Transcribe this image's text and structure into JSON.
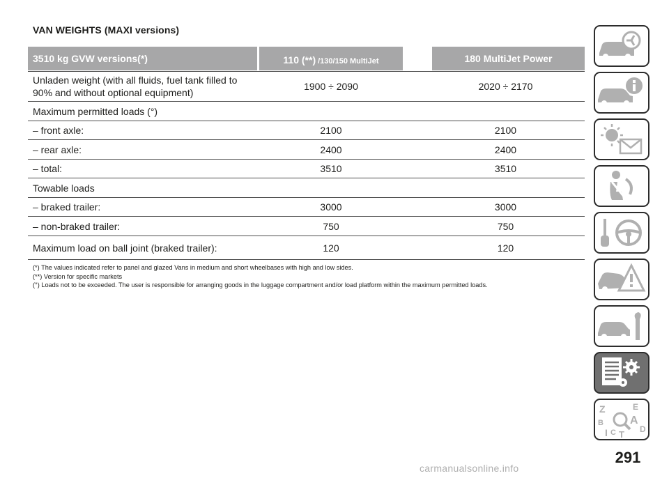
{
  "section_title": "VAN WEIGHTS (MAXI versions)",
  "table": {
    "header": {
      "col1": "3510 kg GVW versions(*)",
      "col2_main": "110 (**)",
      "col2_small": "/130/150 MultiJet",
      "col3": "180 MultiJet Power"
    },
    "rows": [
      {
        "label_line1": "Unladen weight (with all fluids, fuel tank filled to",
        "label_line2": "90% and without optional equipment)",
        "v1": "1900 ÷ 2090",
        "v2": "2020 ÷ 2170"
      },
      {
        "label": "Maximum permitted loads (°)",
        "v1": "",
        "v2": ""
      },
      {
        "label": "– front axle:",
        "v1": "2100",
        "v2": "2100"
      },
      {
        "label": "– rear axle:",
        "v1": "2400",
        "v2": "2400"
      },
      {
        "label": "– total:",
        "v1": "3510",
        "v2": "3510"
      },
      {
        "label": "Towable loads",
        "v1": "",
        "v2": ""
      },
      {
        "label": "– braked trailer:",
        "v1": "3000",
        "v2": "3000"
      },
      {
        "label": "– non-braked trailer:",
        "v1": "750",
        "v2": "750"
      },
      {
        "label": "Maximum load on ball joint (braked trailer):",
        "v1": "120",
        "v2": "120"
      }
    ]
  },
  "notes": [
    "(*) The values indicated refer to panel and glazed Vans in medium and short wheelbases with high and low sides.",
    "(**) Version for specific markets",
    "(°) Loads not to be exceeded. The user is responsible for arranging goods in the luggage compartment and/or load platform within the maximum permitted loads."
  ],
  "sidebar": {
    "tabs": [
      {
        "icon": "car-dashboard-icon"
      },
      {
        "icon": "car-info-icon"
      },
      {
        "icon": "warning-light-message-icon"
      },
      {
        "icon": "seatbelt-airbag-icon"
      },
      {
        "icon": "key-steering-wheel-icon"
      },
      {
        "icon": "car-emergency-icon"
      },
      {
        "icon": "car-maintenance-icon"
      },
      {
        "icon": "technical-data-icon",
        "active": true
      },
      {
        "icon": "alphabetical-index-icon"
      }
    ],
    "active_color": "#707070"
  },
  "page_number": "291",
  "watermark": "carmanualsonline.info"
}
